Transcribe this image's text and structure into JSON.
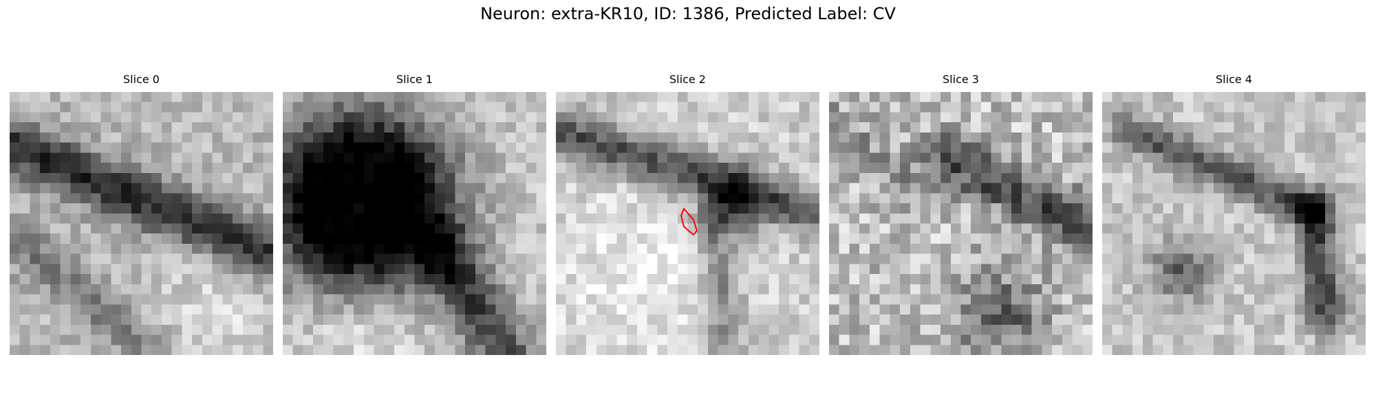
{
  "figure": {
    "title": "Neuron: extra-KR10, ID: 1386, Predicted Label: CV"
  },
  "colors": {
    "roi_outline": "#ff0000",
    "colormap": "grayscale"
  },
  "panels": [
    {
      "title": "Slice 0",
      "has_roi": false
    },
    {
      "title": "Slice 1",
      "has_roi": false
    },
    {
      "title": "Slice 2",
      "has_roi": true
    },
    {
      "title": "Slice 3",
      "has_roi": false
    },
    {
      "title": "Slice 4",
      "has_roi": false
    }
  ]
}
